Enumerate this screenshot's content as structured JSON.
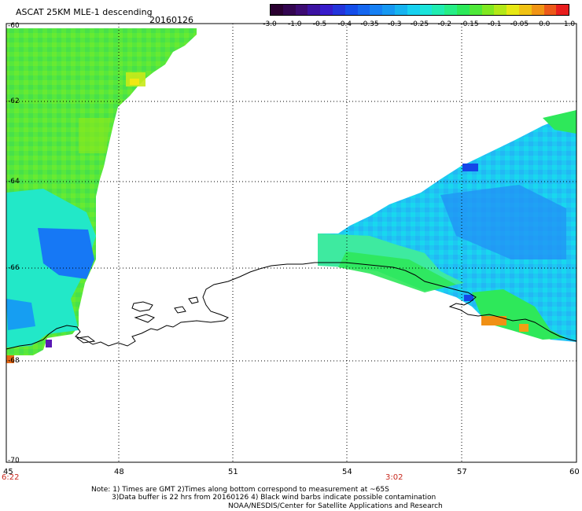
{
  "title": "ASCAT 25KM MLE-1 descending",
  "date": "20160126",
  "colorbar": {
    "labels": [
      "-3.0",
      "-1.0",
      "-0.5",
      "-0.4",
      "-0.35",
      "-0.3",
      "-0.25",
      "-0.2",
      "-0.15",
      "-0.1",
      "-0.05",
      "0.0",
      "1.0"
    ],
    "colors": [
      "#2a0030",
      "#3c0a6e",
      "#3a18c8",
      "#1446e8",
      "#1678f5",
      "#16a6f0",
      "#18e0f0",
      "#22f0a0",
      "#2ee84a",
      "#8ce81a",
      "#f0e812",
      "#f09014",
      "#e81e1e"
    ]
  },
  "axes": {
    "lat_labels": [
      "-60",
      "-62",
      "-64",
      "-66",
      "-68",
      "-70"
    ],
    "lon_labels": [
      "45",
      "48",
      "51",
      "54",
      "57",
      "60"
    ],
    "times": [
      "6:22",
      "3:02"
    ]
  },
  "notes": {
    "line1": "Note: 1) Times are GMT 2)Times along bottom correspond to measurement at ~65S",
    "line2": "3)Data buffer is 22 hrs from 20160126 4) Black wind barbs indicate possible contamination",
    "line3": "NOAA/NESDIS/Center for Satellite Applications and Research"
  }
}
